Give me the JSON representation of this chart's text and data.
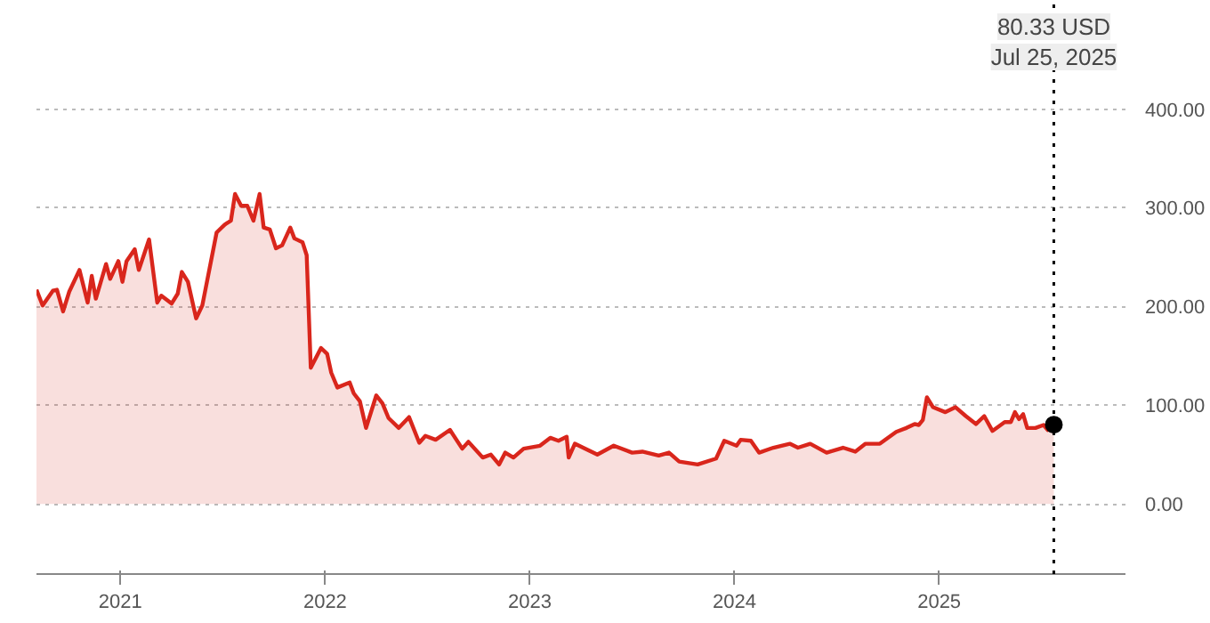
{
  "chart_data": {
    "type": "area",
    "x": [
      2020.59,
      2020.62,
      2020.67,
      2020.69,
      2020.72,
      2020.75,
      2020.8,
      2020.84,
      2020.86,
      2020.88,
      2020.93,
      2020.95,
      2020.99,
      2021.01,
      2021.03,
      2021.07,
      2021.09,
      2021.14,
      2021.18,
      2021.2,
      2021.25,
      2021.28,
      2021.3,
      2021.33,
      2021.37,
      2021.4,
      2021.47,
      2021.51,
      2021.54,
      2021.56,
      2021.59,
      2021.62,
      2021.65,
      2021.68,
      2021.7,
      2021.73,
      2021.76,
      2021.79,
      2021.83,
      2021.85,
      2021.89,
      2021.91,
      2021.93,
      2021.98,
      2022.01,
      2022.03,
      2022.06,
      2022.12,
      2022.14,
      2022.17,
      2022.2,
      2022.25,
      2022.28,
      2022.31,
      2022.36,
      2022.41,
      2022.46,
      2022.49,
      2022.54,
      2022.61,
      2022.67,
      2022.7,
      2022.77,
      2022.81,
      2022.85,
      2022.88,
      2022.92,
      2022.97,
      2023.05,
      2023.1,
      2023.14,
      2023.18,
      2023.19,
      2023.22,
      2023.33,
      2023.41,
      2023.5,
      2023.55,
      2023.63,
      2023.68,
      2023.73,
      2023.82,
      2023.91,
      2023.95,
      2024.01,
      2024.03,
      2024.08,
      2024.12,
      2024.19,
      2024.27,
      2024.31,
      2024.37,
      2024.45,
      2024.53,
      2024.59,
      2024.64,
      2024.71,
      2024.79,
      2024.84,
      2024.88,
      2024.9,
      2024.92,
      2024.94,
      2024.97,
      2025.03,
      2025.08,
      2025.13,
      2025.18,
      2025.22,
      2025.26,
      2025.32,
      2025.35,
      2025.37,
      2025.39,
      2025.41,
      2025.43,
      2025.47,
      2025.51,
      2025.53,
      2025.56
    ],
    "series": [
      {
        "color": "#d9261c",
        "values": [
          217,
          201,
          216,
          217,
          195,
          215,
          237,
          204,
          231,
          208,
          243,
          228,
          246,
          225,
          246,
          258,
          237,
          268,
          204,
          211,
          203,
          213,
          235,
          225,
          188,
          201,
          275,
          283,
          287,
          314,
          302,
          302,
          287,
          314,
          280,
          278,
          259,
          262,
          280,
          269,
          265,
          252,
          138,
          158,
          152,
          133,
          118,
          123,
          112,
          104,
          77,
          110,
          102,
          87,
          77,
          88,
          62,
          69,
          65,
          75,
          56,
          63,
          47,
          50,
          40,
          52,
          47,
          56,
          59,
          67,
          64,
          68,
          47,
          61,
          50,
          59,
          52,
          53,
          49,
          52,
          43,
          40,
          46,
          64,
          59,
          65,
          64,
          52,
          57,
          61,
          57,
          61,
          52,
          57,
          53,
          61,
          61,
          73,
          77,
          81,
          80,
          85,
          108,
          98,
          93,
          98,
          89,
          81,
          89,
          74,
          83,
          83,
          93,
          86,
          91,
          77,
          77,
          80,
          75,
          80.33
        ]
      }
    ],
    "xlim": [
      2020.59,
      2025.91
    ],
    "ylim": [
      -71,
      506
    ],
    "xticks": [
      2021,
      2022,
      2023,
      2024,
      2025
    ],
    "yticks": [
      {
        "value": 0,
        "label": "0.00"
      },
      {
        "value": 100,
        "label": "100.00"
      },
      {
        "value": 200,
        "label": "200.00"
      },
      {
        "value": 300,
        "label": "300.00"
      },
      {
        "value": 400,
        "label": "400.00"
      }
    ],
    "grid": "y",
    "ref_lines": [
      {
        "axis": "x",
        "value": 2025.56,
        "label": "Jul 25, 2025",
        "color": "#000000",
        "line_style": "dotted"
      }
    ],
    "annotations": [
      "80.33 USD"
    ]
  }
}
